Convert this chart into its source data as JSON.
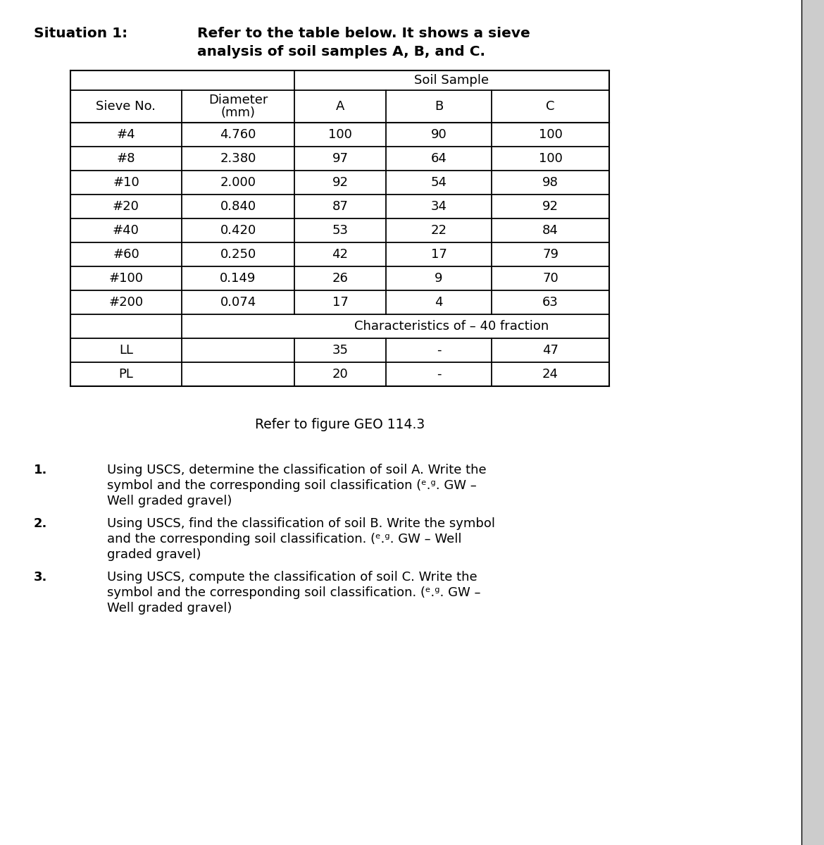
{
  "bg_color": "#ffffff",
  "situation_label": "Situation 1:",
  "situation_text_line1": "Refer to the table below. It shows a sieve",
  "situation_text_line2": "analysis of soil samples A, B, and C.",
  "table": {
    "col_headers": [
      "Sieve No.",
      "Diameter\n(mm)",
      "A",
      "B",
      "C"
    ],
    "soil_sample_label": "Soil Sample",
    "rows": [
      [
        "#4",
        "4.760",
        "100",
        "90",
        "100"
      ],
      [
        "#8",
        "2.380",
        "97",
        "64",
        "100"
      ],
      [
        "#10",
        "2.000",
        "92",
        "54",
        "98"
      ],
      [
        "#20",
        "0.840",
        "87",
        "34",
        "92"
      ],
      [
        "#40",
        "0.420",
        "53",
        "22",
        "84"
      ],
      [
        "#60",
        "0.250",
        "42",
        "17",
        "79"
      ],
      [
        "#100",
        "0.149",
        "26",
        "9",
        "70"
      ],
      [
        "#200",
        "0.074",
        "17",
        "4",
        "63"
      ]
    ],
    "char_row_label": "Characteristics of – 40 fraction",
    "ll_row": [
      "LL",
      "",
      "35",
      "-",
      "47"
    ],
    "pl_row": [
      "PL",
      "",
      "20",
      "-",
      "24"
    ]
  },
  "ref_text": "Refer to figure GEO 114.3",
  "questions": [
    {
      "number": "1.",
      "lines": [
        "Using USCS, determine the classification of soil A. Write the",
        "symbol and the corresponding soil classification (ᵉ.ᵍ. GW –",
        "Well graded gravel)"
      ]
    },
    {
      "number": "2.",
      "lines": [
        "Using USCS, find the classification of soil B. Write the symbol",
        "and the corresponding soil classification. (ᵉ.ᵍ. GW – Well",
        "graded gravel)"
      ]
    },
    {
      "number": "3.",
      "lines": [
        "Using USCS, compute the classification of soil C. Write the",
        "symbol and the corresponding soil classification. (ᵉ.ᵍ. GW –",
        "Well graded gravel)"
      ]
    }
  ],
  "title_fontsize": 14.5,
  "table_fontsize": 13,
  "question_fontsize": 13,
  "line_color": "#000000",
  "text_color": "#000000"
}
